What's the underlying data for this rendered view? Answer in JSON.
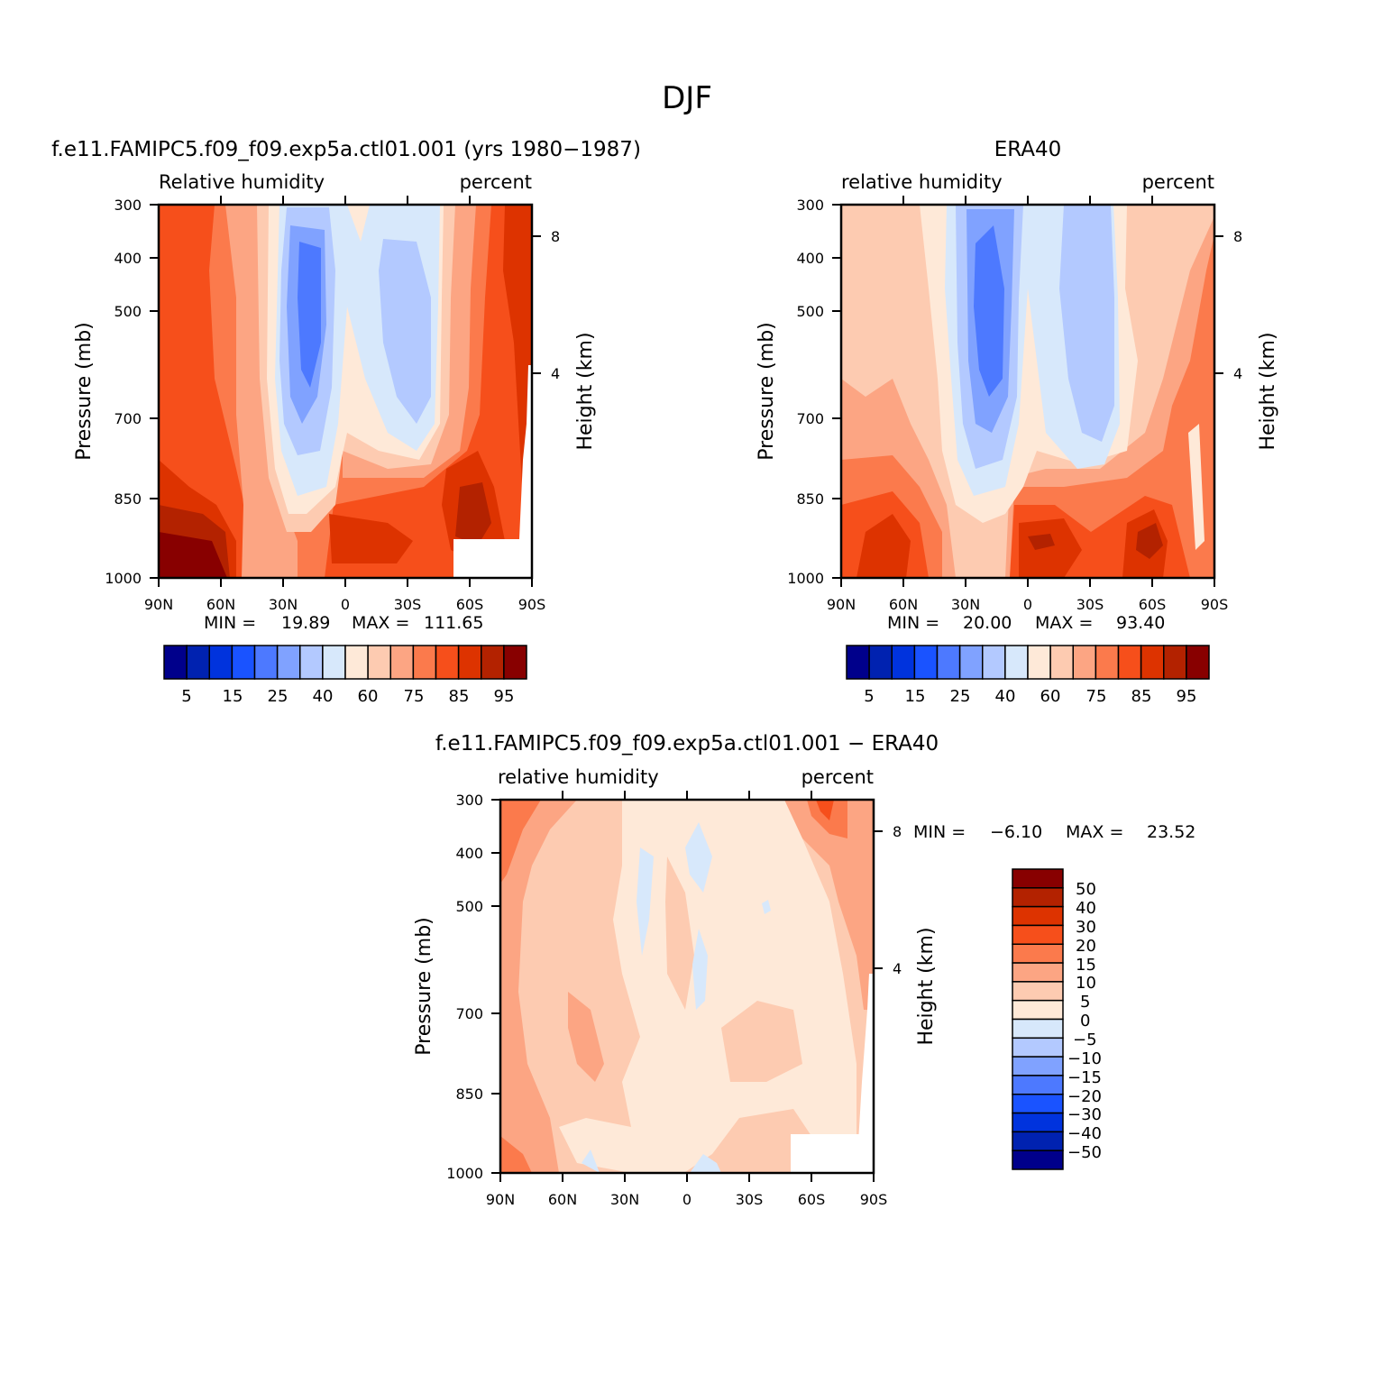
{
  "main_title": "DJF",
  "chart_data": [
    {
      "type": "heatmap",
      "title": "f.e11.FAMIPC5.f09_f09.exp5a.ctl01.001 (yrs 1980-1987)",
      "subtitle_left": "Relative humidity",
      "subtitle_right": "percent",
      "ylabel": "Pressure (mb)",
      "ylabel_right": "Height (km)",
      "x_ticks": [
        "90N",
        "60N",
        "30N",
        "0",
        "30S",
        "60S",
        "90S"
      ],
      "y_ticks": [
        "300",
        "400",
        "500",
        "700",
        "850",
        "1000"
      ],
      "y_right_ticks": [
        "8",
        "4"
      ],
      "stats": {
        "min_label": "MIN =",
        "min": "19.89",
        "max_label": "MAX =",
        "max": "111.65"
      },
      "colorbar_labels": [
        "5",
        "15",
        "25",
        "40",
        "60",
        "75",
        "85",
        "95"
      ],
      "lat_range": [
        90,
        -90
      ],
      "pressure_range": [
        300,
        1000
      ]
    },
    {
      "type": "heatmap",
      "title": "ERA40",
      "subtitle_left": "relative humidity",
      "subtitle_right": "percent",
      "ylabel": "Pressure (mb)",
      "ylabel_right": "Height (km)",
      "x_ticks": [
        "90N",
        "60N",
        "30N",
        "0",
        "30S",
        "60S",
        "90S"
      ],
      "y_ticks": [
        "300",
        "400",
        "500",
        "700",
        "850",
        "1000"
      ],
      "y_right_ticks": [
        "8",
        "4"
      ],
      "stats": {
        "min_label": "MIN =",
        "min": "20.00",
        "max_label": "MAX =",
        "max": "93.40"
      },
      "colorbar_labels": [
        "5",
        "15",
        "25",
        "40",
        "60",
        "75",
        "85",
        "95"
      ],
      "lat_range": [
        90,
        -90
      ],
      "pressure_range": [
        300,
        1000
      ]
    },
    {
      "type": "heatmap",
      "title": "f.e11.FAMIPC5.f09_f09.exp5a.ctl01.001 - ERA40",
      "subtitle_left": "relative humidity",
      "subtitle_right": "percent",
      "ylabel": "Pressure (mb)",
      "ylabel_right": "Height (km)",
      "x_ticks": [
        "90N",
        "60N",
        "30N",
        "0",
        "30S",
        "60S",
        "90S"
      ],
      "y_ticks": [
        "300",
        "400",
        "500",
        "700",
        "850",
        "1000"
      ],
      "y_right_ticks": [
        "8",
        "4"
      ],
      "stats": {
        "min_label": "MIN =",
        "min": "-6.10",
        "max_label": "MAX =",
        "max": "23.52"
      },
      "colorbar_labels": [
        "50",
        "40",
        "30",
        "20",
        "15",
        "10",
        "5",
        "0",
        "-5",
        "-10",
        "-15",
        "-20",
        "-30",
        "-40",
        "-50"
      ],
      "lat_range": [
        90,
        -90
      ],
      "pressure_range": [
        300,
        1000
      ]
    }
  ],
  "palette": [
    "#00008b",
    "#0022b0",
    "#0033dd",
    "#1a53ff",
    "#4d79ff",
    "#80a2ff",
    "#b3c9ff",
    "#d7e8fb",
    "#fee9d8",
    "#fdcbb1",
    "#fca583",
    "#fb7a4c",
    "#f64f1b",
    "#dd3300",
    "#b32200",
    "#880000"
  ],
  "diff_palette": [
    "#880000",
    "#b32200",
    "#dd3300",
    "#f64f1b",
    "#fb7a4c",
    "#fca583",
    "#fdcbb1",
    "#fee9d8",
    "#d7e8fb",
    "#b3c9ff",
    "#80a2ff",
    "#4d79ff",
    "#1a53ff",
    "#0033dd",
    "#0022b0",
    "#00008b"
  ]
}
